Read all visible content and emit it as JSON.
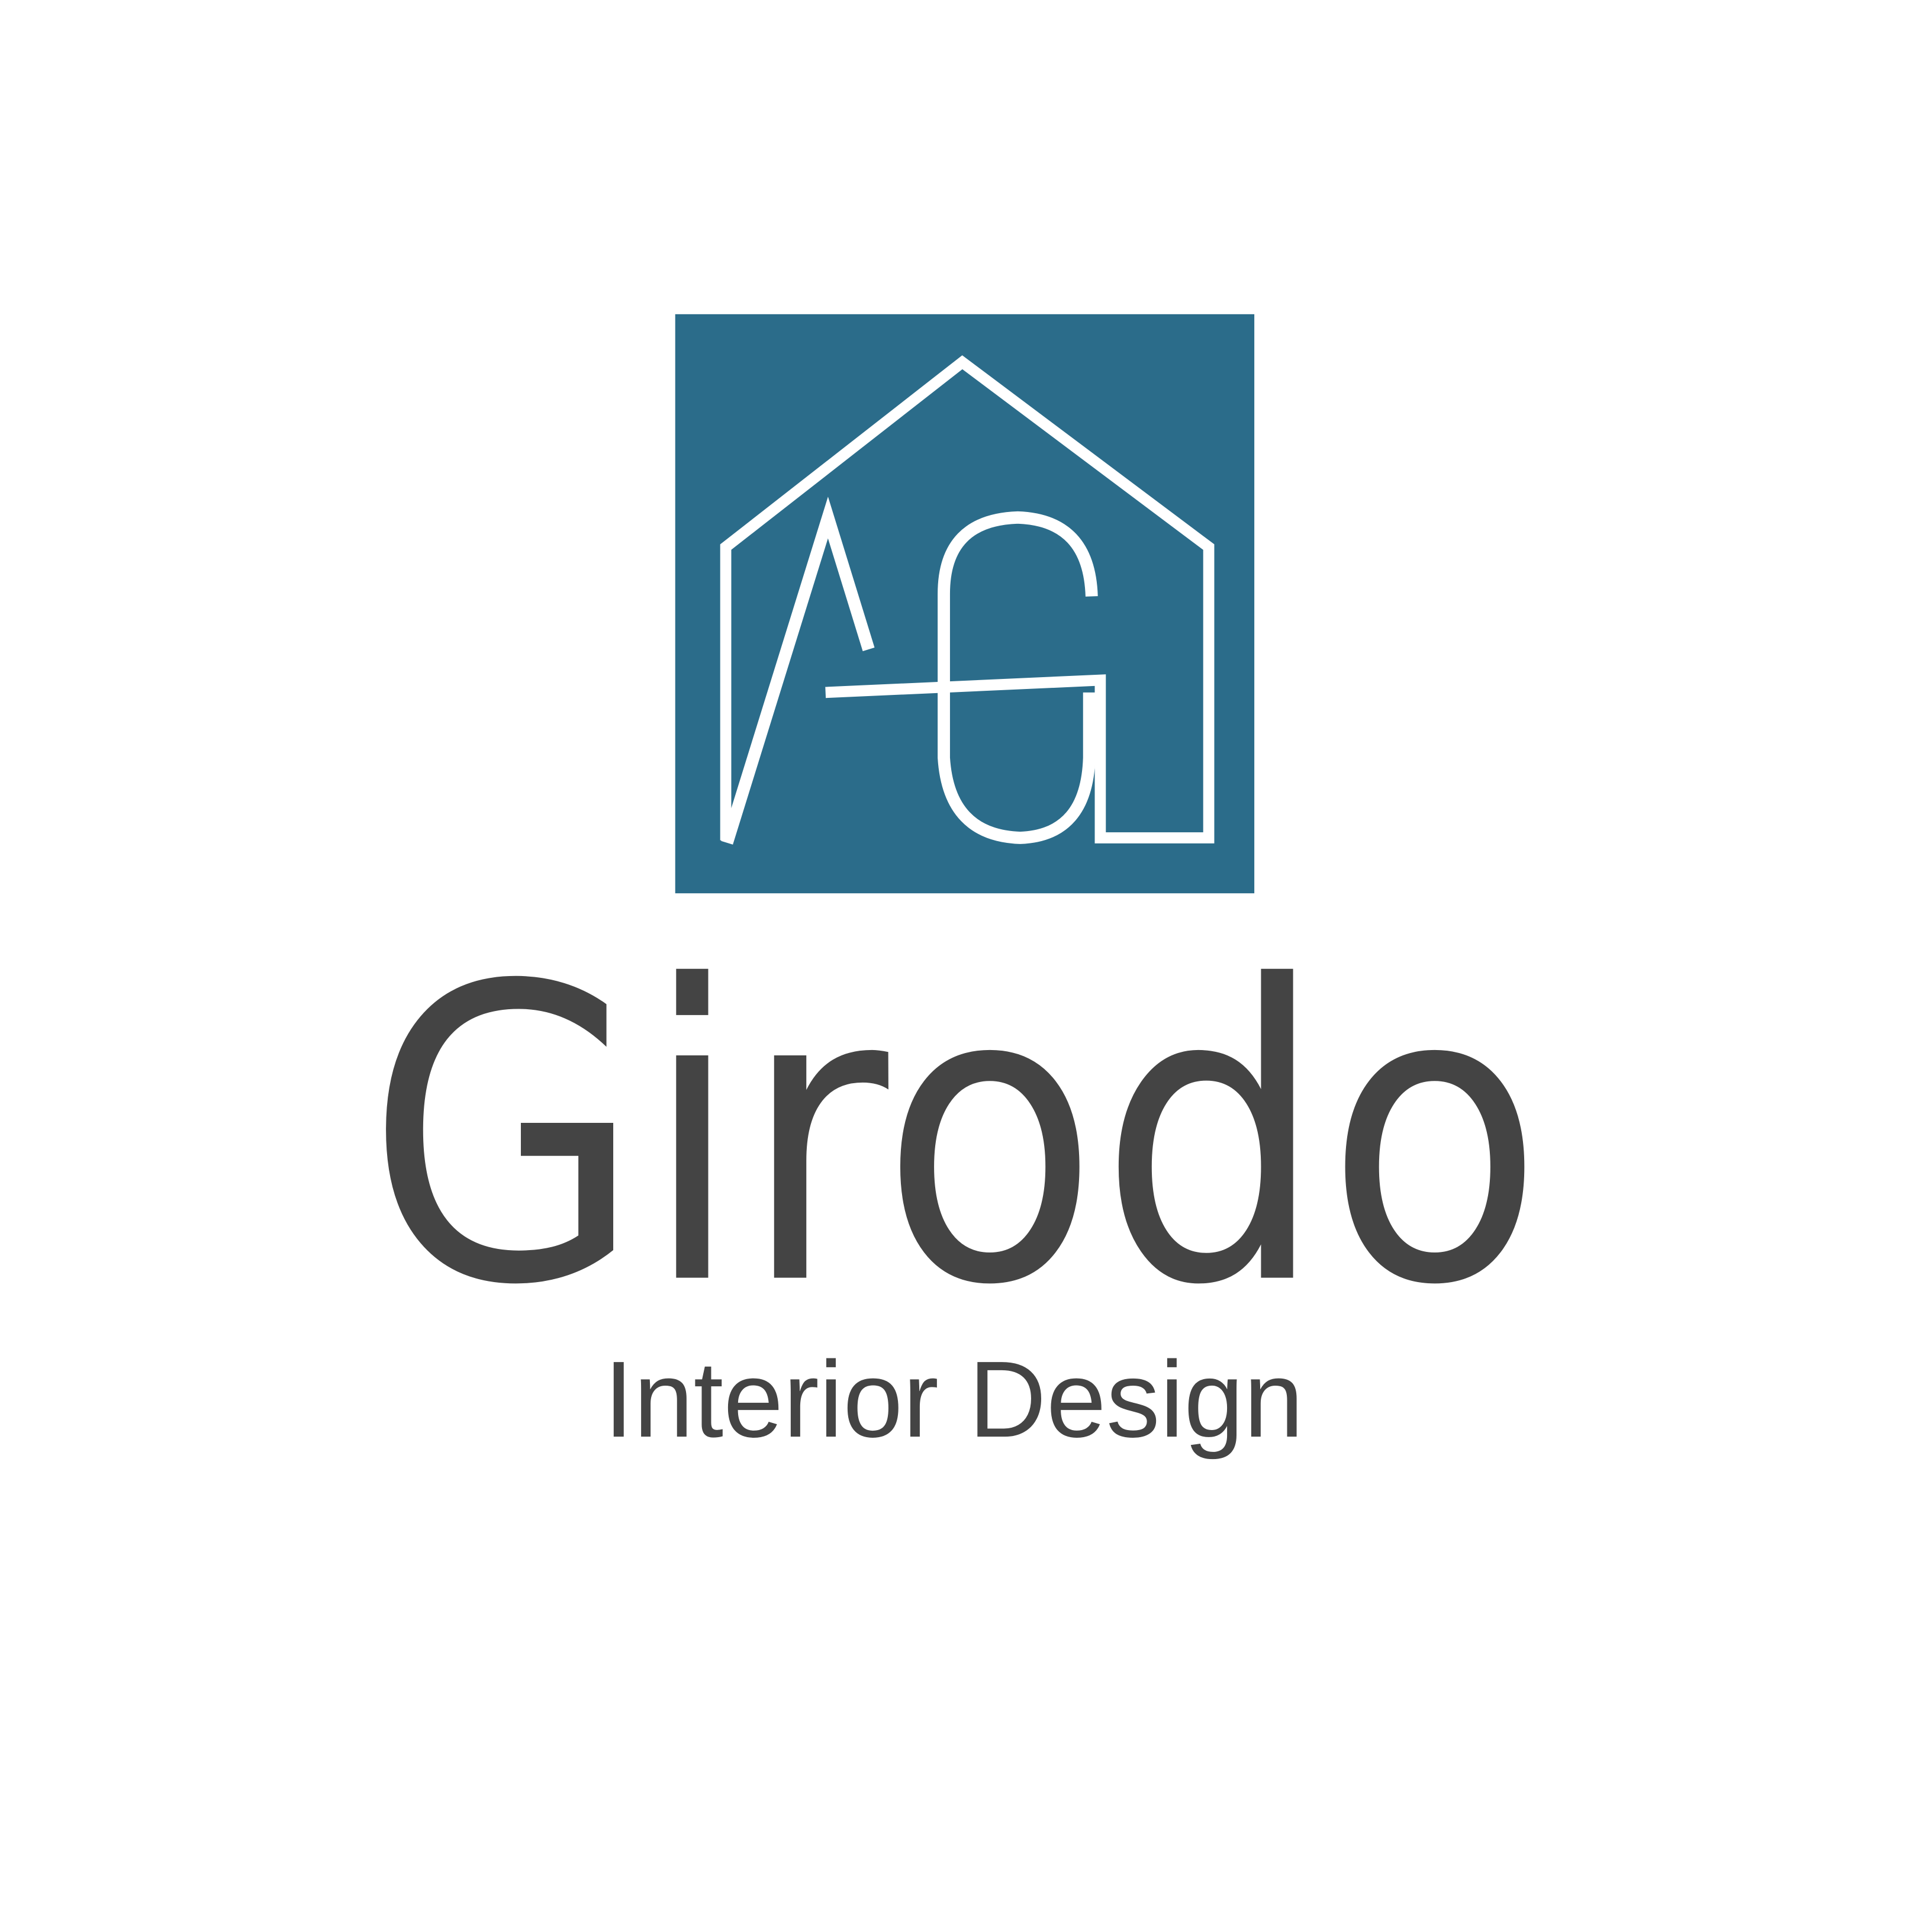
{
  "logo": {
    "name": "Girodo",
    "tagline": "Interior Design"
  }
}
